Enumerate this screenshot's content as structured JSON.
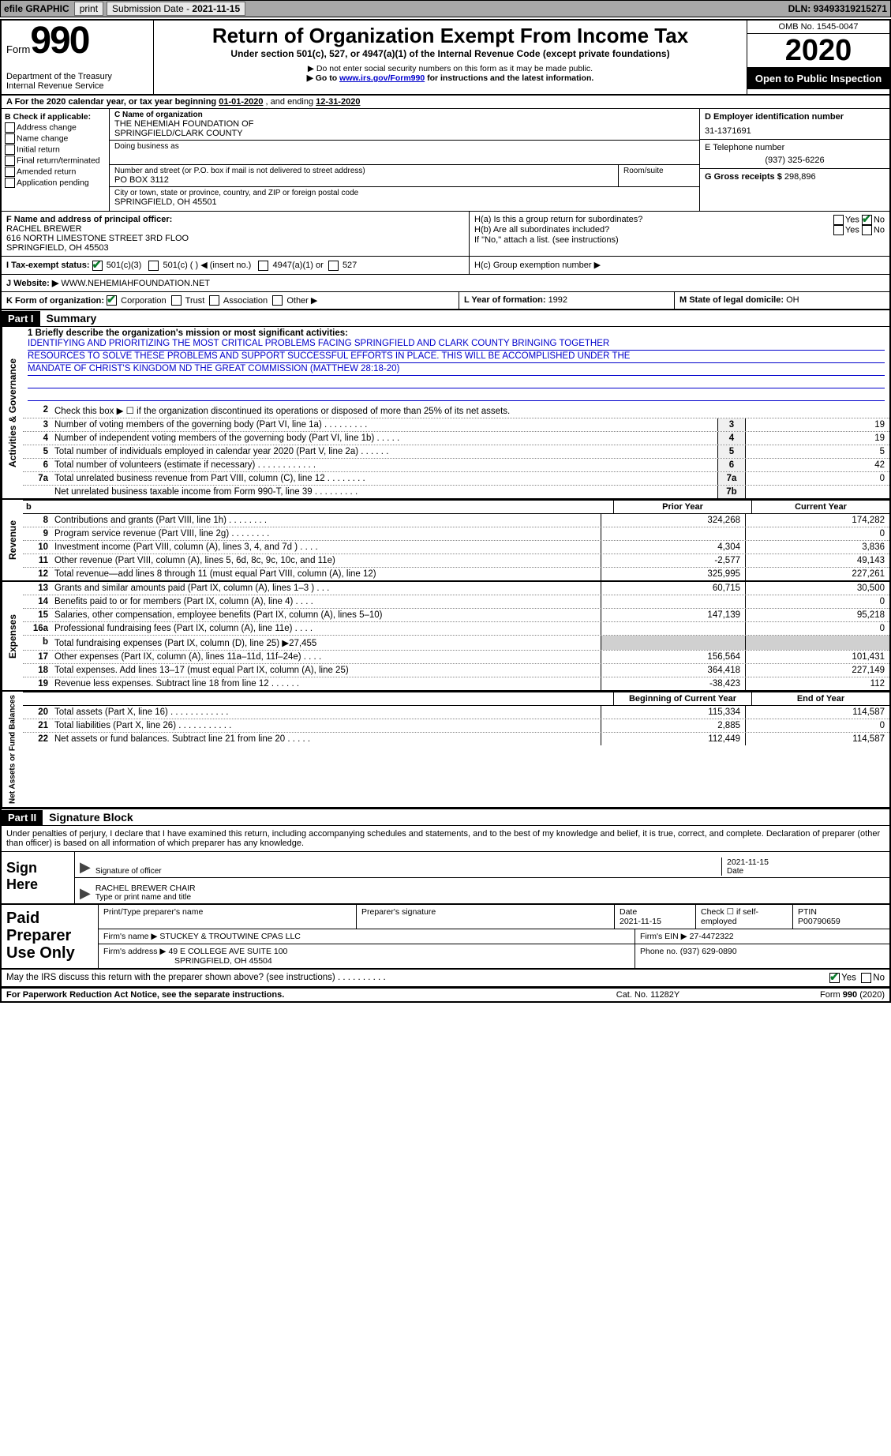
{
  "colors": {
    "topbar_bg": "#a8a8a8",
    "link": "#0000cc",
    "check": "#0a7a2a",
    "grey_cell": "#d0d0d0"
  },
  "topbar": {
    "efile": "efile GRAPHIC",
    "print": "print",
    "subdate_label": "Submission Date - ",
    "subdate": "2021-11-15",
    "dln_label": "DLN: ",
    "dln": "93493319215271"
  },
  "header": {
    "form_label": "Form",
    "form_num": "990",
    "dept": "Department of the Treasury",
    "irs": "Internal Revenue Service",
    "title": "Return of Organization Exempt From Income Tax",
    "sub": "Under section 501(c), 527, or 4947(a)(1) of the Internal Revenue Code (except private foundations)",
    "warn": "▶ Do not enter social security numbers on this form as it may be made public.",
    "goto_pre": "▶ Go to ",
    "goto_link": "www.irs.gov/Form990",
    "goto_post": " for instructions and the latest information.",
    "omb": "OMB No. 1545-0047",
    "year": "2020",
    "opi": "Open to Public Inspection"
  },
  "A": {
    "text": "A For the 2020 calendar year, or tax year beginning ",
    "begin": "01-01-2020",
    "mid": " , and ending ",
    "end": "12-31-2020"
  },
  "B": {
    "label": "B Check if applicable:",
    "items": [
      "Address change",
      "Name change",
      "Initial return",
      "Final return/terminated",
      "Amended return",
      "Application pending"
    ]
  },
  "C": {
    "label": "C Name of organization",
    "name1": "THE NEHEMIAH FOUNDATION OF",
    "name2": "SPRINGFIELD/CLARK COUNTY",
    "dba_label": "Doing business as",
    "addr_label": "Number and street (or P.O. box if mail is not delivered to street address)",
    "room_label": "Room/suite",
    "addr": "PO BOX 3112",
    "city_label": "City or town, state or province, country, and ZIP or foreign postal code",
    "city": "SPRINGFIELD, OH  45501"
  },
  "D": {
    "label": "D Employer identification number",
    "val": "31-1371691"
  },
  "E": {
    "label": "E Telephone number",
    "val": "(937) 325-6226"
  },
  "G": {
    "label": "G Gross receipts $ ",
    "val": "298,896"
  },
  "F": {
    "label": "F  Name and address of principal officer:",
    "name": "RACHEL BREWER",
    "addr1": "616 NORTH LIMESTONE STREET 3RD FLOO",
    "addr2": "SPRINGFIELD, OH  45503"
  },
  "H": {
    "a": "H(a)  Is this a group return for subordinates?",
    "a_yes": "Yes",
    "a_no": "No",
    "b": "H(b)  Are all subordinates included?",
    "b_yes": "Yes",
    "b_no": "No",
    "b_note": "If \"No,\" attach a list. (see instructions)",
    "c": "H(c)  Group exemption number ▶"
  },
  "I": {
    "label": "I   Tax-exempt status:",
    "opt1": "501(c)(3)",
    "opt2": "501(c) (   ) ◀ (insert no.)",
    "opt3": "4947(a)(1) or",
    "opt4": "527"
  },
  "J": {
    "label": "J   Website: ▶ ",
    "val": "WWW.NEHEMIAHFOUNDATION.NET"
  },
  "K": {
    "label": "K Form of organization:",
    "opts": [
      "Corporation",
      "Trust",
      "Association",
      "Other ▶"
    ],
    "L": "L Year of formation: ",
    "Lval": "1992",
    "M": "M State of legal domicile: ",
    "Mval": "OH"
  },
  "part1": {
    "hdr": "Part I",
    "title": "Summary"
  },
  "sections": {
    "ag": "Activities & Governance",
    "rev": "Revenue",
    "exp": "Expenses",
    "na": "Net Assets or Fund Balances"
  },
  "mission": {
    "label": "1  Briefly describe the organization's mission or most significant activities:",
    "l1": "IDENTIFYING AND PRIORITIZING THE MOST CRITICAL PROBLEMS FACING SPRINGFIELD AND CLARK COUNTY BRINGING TOGETHER",
    "l2": "RESOURCES TO SOLVE THESE PROBLEMS AND SUPPORT SUCCESSFUL EFFORTS IN PLACE. THIS WILL BE ACCOMPLISHED UNDER THE",
    "l3": "MANDATE OF CHRIST'S KINGDOM ND THE GREAT COMMISSION (MATTHEW 28:18-20)"
  },
  "lines_ag": [
    {
      "n": "2",
      "t": "Check this box ▶ ☐ if the organization discontinued its operations or disposed of more than 25% of its net assets.",
      "box": "",
      "v": ""
    },
    {
      "n": "3",
      "t": "Number of voting members of the governing body (Part VI, line 1a)  .    .    .    .    .    .    .    .    .",
      "box": "3",
      "v": "19"
    },
    {
      "n": "4",
      "t": "Number of independent voting members of the governing body (Part VI, line 1b)   .    .    .    .    .",
      "box": "4",
      "v": "19"
    },
    {
      "n": "5",
      "t": "Total number of individuals employed in calendar year 2020 (Part V, line 2a)  .    .    .    .    .    .",
      "box": "5",
      "v": "5"
    },
    {
      "n": "6",
      "t": "Total number of volunteers (estimate if necessary)    .    .    .    .    .    .    .    .    .    .    .    .",
      "box": "6",
      "v": "42"
    },
    {
      "n": "7a",
      "t": "Total unrelated business revenue from Part VIII, column (C), line 12   .    .    .    .    .    .    .    .",
      "box": "7a",
      "v": "0"
    },
    {
      "n": "",
      "t": "Net unrelated business taxable income from Form 990-T, line 39   .    .    .    .    .    .    .    .    .",
      "box": "7b",
      "v": ""
    }
  ],
  "th_rev": {
    "prior": "Prior Year",
    "curr": "Current Year",
    "b": "b"
  },
  "lines_rev": [
    {
      "n": "8",
      "t": "Contributions and grants (Part VIII, line 1h)   .    .    .    .    .    .    .    .",
      "p": "324,268",
      "c": "174,282"
    },
    {
      "n": "9",
      "t": "Program service revenue (Part VIII, line 2g)   .    .    .    .    .    .    .    .",
      "p": "",
      "c": "0"
    },
    {
      "n": "10",
      "t": "Investment income (Part VIII, column (A), lines 3, 4, and 7d )   .    .    .    .",
      "p": "4,304",
      "c": "3,836"
    },
    {
      "n": "11",
      "t": "Other revenue (Part VIII, column (A), lines 5, 6d, 8c, 9c, 10c, and 11e)",
      "p": "-2,577",
      "c": "49,143"
    },
    {
      "n": "12",
      "t": "Total revenue—add lines 8 through 11 (must equal Part VIII, column (A), line 12)",
      "p": "325,995",
      "c": "227,261"
    }
  ],
  "lines_exp": [
    {
      "n": "13",
      "t": "Grants and similar amounts paid (Part IX, column (A), lines 1–3 )   .    .    .",
      "p": "60,715",
      "c": "30,500"
    },
    {
      "n": "14",
      "t": "Benefits paid to or for members (Part IX, column (A), line 4)   .    .    .    .",
      "p": "",
      "c": "0"
    },
    {
      "n": "15",
      "t": "Salaries, other compensation, employee benefits (Part IX, column (A), lines 5–10)",
      "p": "147,139",
      "c": "95,218"
    },
    {
      "n": "16a",
      "t": "Professional fundraising fees (Part IX, column (A), line 11e)   .    .    .    .",
      "p": "",
      "c": "0"
    },
    {
      "n": "b",
      "t": "Total fundraising expenses (Part IX, column (D), line 25) ▶27,455",
      "p": "__GREY__",
      "c": "__GREY__"
    },
    {
      "n": "17",
      "t": "Other expenses (Part IX, column (A), lines 11a–11d, 11f–24e)   .    .    .    .",
      "p": "156,564",
      "c": "101,431"
    },
    {
      "n": "18",
      "t": "Total expenses. Add lines 13–17 (must equal Part IX, column (A), line 25)",
      "p": "364,418",
      "c": "227,149"
    },
    {
      "n": "19",
      "t": "Revenue less expenses. Subtract line 18 from line 12   .    .    .    .    .    .",
      "p": "-38,423",
      "c": "112"
    }
  ],
  "th_na": {
    "prior": "Beginning of Current Year",
    "curr": "End of Year"
  },
  "lines_na": [
    {
      "n": "20",
      "t": "Total assets (Part X, line 16)   .    .    .    .    .    .    .    .    .    .    .    .",
      "p": "115,334",
      "c": "114,587"
    },
    {
      "n": "21",
      "t": "Total liabilities (Part X, line 26)   .    .    .    .    .    .    .    .    .    .    .",
      "p": "2,885",
      "c": "0"
    },
    {
      "n": "22",
      "t": "Net assets or fund balances. Subtract line 21 from line 20   .    .    .    .    .",
      "p": "112,449",
      "c": "114,587"
    }
  ],
  "part2": {
    "hdr": "Part II",
    "title": "Signature Block"
  },
  "sig": {
    "decl": "Under penalties of perjury, I declare that I have examined this return, including accompanying schedules and statements, and to the best of my knowledge and belief, it is true, correct, and complete. Declaration of preparer (other than officer) is based on all information of which preparer has any knowledge.",
    "sign_here": "Sign Here",
    "sig_label": "Signature of officer",
    "date_label": "Date",
    "date": "2021-11-15",
    "name": "RACHEL BREWER CHAIR",
    "name_label": "Type or print name and title"
  },
  "prep": {
    "label": "Paid Preparer Use Only",
    "h1": "Print/Type preparer's name",
    "h2": "Preparer's signature",
    "h3": "Date",
    "h3v": "2021-11-15",
    "h4": "Check ☐ if self-employed",
    "h5": "PTIN",
    "h5v": "P00790659",
    "firm_label": "Firm's name    ▶ ",
    "firm": "STUCKEY & TROUTWINE CPAS LLC",
    "ein_label": "Firm's EIN ▶ ",
    "ein": "27-4472322",
    "addr_label": "Firm's address ▶ ",
    "addr1": "49 E COLLEGE AVE SUITE 100",
    "addr2": "SPRINGFIELD, OH  45504",
    "phone_label": "Phone no. ",
    "phone": "(937) 629-0890"
  },
  "discuss": {
    "text": "May the IRS discuss this return with the preparer shown above? (see instructions)   .    .    .    .    .    .    .    .    .    .",
    "yes": "Yes",
    "no": "No"
  },
  "footer": {
    "l": "For Paperwork Reduction Act Notice, see the separate instructions.",
    "m": "Cat. No. 11282Y",
    "r": "Form 990 (2020)"
  }
}
